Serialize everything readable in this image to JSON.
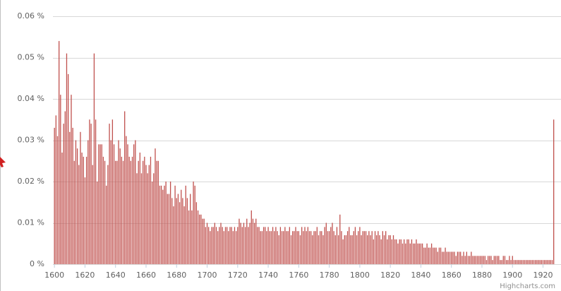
{
  "chart_data": {
    "type": "bar",
    "credits": "Highcharts.com",
    "color": "#c0504d",
    "grid": true,
    "ylim": [
      0,
      0.06
    ],
    "yticks": [
      {
        "value": 0,
        "label": "0 %"
      },
      {
        "value": 0.01,
        "label": "0.01 %"
      },
      {
        "value": 0.02,
        "label": "0.02 %"
      },
      {
        "value": 0.03,
        "label": "0.03 %"
      },
      {
        "value": 0.04,
        "label": "0.04 %"
      },
      {
        "value": 0.05,
        "label": "0.05 %"
      },
      {
        "value": 0.06,
        "label": "0.06 %"
      }
    ],
    "xlim": [
      1599,
      1929
    ],
    "xticks": [
      1600,
      1620,
      1640,
      1660,
      1680,
      1700,
      1720,
      1740,
      1760,
      1780,
      1800,
      1820,
      1840,
      1860,
      1880,
      1900,
      1920
    ],
    "x": [
      1600,
      1601,
      1602,
      1603,
      1604,
      1605,
      1606,
      1607,
      1608,
      1609,
      1610,
      1611,
      1612,
      1613,
      1614,
      1615,
      1616,
      1617,
      1618,
      1619,
      1620,
      1621,
      1622,
      1623,
      1624,
      1625,
      1626,
      1627,
      1628,
      1629,
      1630,
      1631,
      1632,
      1633,
      1634,
      1635,
      1636,
      1637,
      1638,
      1639,
      1640,
      1641,
      1642,
      1643,
      1644,
      1645,
      1646,
      1647,
      1648,
      1649,
      1650,
      1651,
      1652,
      1653,
      1654,
      1655,
      1656,
      1657,
      1658,
      1659,
      1660,
      1661,
      1662,
      1663,
      1664,
      1665,
      1666,
      1667,
      1668,
      1669,
      1670,
      1671,
      1672,
      1673,
      1674,
      1675,
      1676,
      1677,
      1678,
      1679,
      1680,
      1681,
      1682,
      1683,
      1684,
      1685,
      1686,
      1687,
      1688,
      1689,
      1690,
      1691,
      1692,
      1693,
      1694,
      1695,
      1696,
      1697,
      1698,
      1699,
      1700,
      1701,
      1702,
      1703,
      1704,
      1705,
      1706,
      1707,
      1708,
      1709,
      1710,
      1711,
      1712,
      1713,
      1714,
      1715,
      1716,
      1717,
      1718,
      1719,
      1720,
      1721,
      1722,
      1723,
      1724,
      1725,
      1726,
      1727,
      1728,
      1729,
      1730,
      1731,
      1732,
      1733,
      1734,
      1735,
      1736,
      1737,
      1738,
      1739,
      1740,
      1741,
      1742,
      1743,
      1744,
      1745,
      1746,
      1747,
      1748,
      1749,
      1750,
      1751,
      1752,
      1753,
      1754,
      1755,
      1756,
      1757,
      1758,
      1759,
      1760,
      1761,
      1762,
      1763,
      1764,
      1765,
      1766,
      1767,
      1768,
      1769,
      1770,
      1771,
      1772,
      1773,
      1774,
      1775,
      1776,
      1777,
      1778,
      1779,
      1780,
      1781,
      1782,
      1783,
      1784,
      1785,
      1786,
      1787,
      1788,
      1789,
      1790,
      1791,
      1792,
      1793,
      1794,
      1795,
      1796,
      1797,
      1798,
      1799,
      1800,
      1801,
      1802,
      1803,
      1804,
      1805,
      1806,
      1807,
      1808,
      1809,
      1810,
      1811,
      1812,
      1813,
      1814,
      1815,
      1816,
      1817,
      1818,
      1819,
      1820,
      1821,
      1822,
      1823,
      1824,
      1825,
      1826,
      1827,
      1828,
      1829,
      1830,
      1831,
      1832,
      1833,
      1834,
      1835,
      1836,
      1837,
      1838,
      1839,
      1840,
      1841,
      1842,
      1843,
      1844,
      1845,
      1846,
      1847,
      1848,
      1849,
      1850,
      1851,
      1852,
      1853,
      1854,
      1855,
      1856,
      1857,
      1858,
      1859,
      1860,
      1861,
      1862,
      1863,
      1864,
      1865,
      1866,
      1867,
      1868,
      1869,
      1870,
      1871,
      1872,
      1873,
      1874,
      1875,
      1876,
      1877,
      1878,
      1879,
      1880,
      1881,
      1882,
      1883,
      1884,
      1885,
      1886,
      1887,
      1888,
      1889,
      1890,
      1891,
      1892,
      1893,
      1894,
      1895,
      1896,
      1897,
      1898,
      1899,
      1900,
      1901,
      1902,
      1903,
      1904,
      1905,
      1906,
      1907,
      1908,
      1909,
      1910,
      1911,
      1912,
      1913,
      1914,
      1915,
      1916,
      1917,
      1918,
      1919,
      1920,
      1921,
      1922,
      1923,
      1924,
      1925,
      1926,
      1927
    ],
    "values": [
      0.033,
      0.036,
      0.031,
      0.054,
      0.041,
      0.027,
      0.034,
      0.037,
      0.051,
      0.046,
      0.032,
      0.041,
      0.033,
      0.025,
      0.03,
      0.028,
      0.024,
      0.032,
      0.027,
      0.026,
      0.021,
      0.026,
      0.03,
      0.035,
      0.034,
      0.024,
      0.051,
      0.035,
      0.02,
      0.029,
      0.029,
      0.029,
      0.026,
      0.025,
      0.019,
      0.024,
      0.034,
      0.03,
      0.035,
      0.029,
      0.025,
      0.025,
      0.03,
      0.028,
      0.026,
      0.025,
      0.037,
      0.031,
      0.029,
      0.026,
      0.025,
      0.026,
      0.029,
      0.03,
      0.022,
      0.025,
      0.027,
      0.022,
      0.025,
      0.026,
      0.024,
      0.022,
      0.024,
      0.026,
      0.02,
      0.022,
      0.028,
      0.025,
      0.025,
      0.019,
      0.019,
      0.018,
      0.019,
      0.02,
      0.017,
      0.017,
      0.02,
      0.016,
      0.014,
      0.019,
      0.016,
      0.017,
      0.015,
      0.018,
      0.016,
      0.014,
      0.019,
      0.016,
      0.013,
      0.017,
      0.013,
      0.02,
      0.019,
      0.015,
      0.013,
      0.012,
      0.012,
      0.011,
      0.011,
      0.009,
      0.01,
      0.009,
      0.008,
      0.009,
      0.009,
      0.01,
      0.009,
      0.008,
      0.009,
      0.01,
      0.009,
      0.008,
      0.009,
      0.009,
      0.008,
      0.009,
      0.009,
      0.008,
      0.009,
      0.008,
      0.009,
      0.011,
      0.01,
      0.009,
      0.01,
      0.009,
      0.011,
      0.009,
      0.01,
      0.013,
      0.011,
      0.01,
      0.011,
      0.009,
      0.009,
      0.008,
      0.008,
      0.009,
      0.009,
      0.008,
      0.009,
      0.008,
      0.008,
      0.009,
      0.008,
      0.009,
      0.008,
      0.007,
      0.009,
      0.008,
      0.008,
      0.009,
      0.008,
      0.008,
      0.009,
      0.007,
      0.008,
      0.008,
      0.009,
      0.008,
      0.008,
      0.007,
      0.009,
      0.008,
      0.009,
      0.008,
      0.009,
      0.008,
      0.008,
      0.007,
      0.008,
      0.008,
      0.009,
      0.007,
      0.008,
      0.008,
      0.007,
      0.009,
      0.01,
      0.008,
      0.008,
      0.009,
      0.01,
      0.008,
      0.007,
      0.009,
      0.007,
      0.012,
      0.008,
      0.006,
      0.007,
      0.007,
      0.008,
      0.009,
      0.007,
      0.007,
      0.008,
      0.009,
      0.007,
      0.008,
      0.009,
      0.007,
      0.008,
      0.008,
      0.008,
      0.007,
      0.008,
      0.007,
      0.008,
      0.006,
      0.008,
      0.007,
      0.008,
      0.007,
      0.006,
      0.008,
      0.007,
      0.008,
      0.006,
      0.007,
      0.007,
      0.006,
      0.007,
      0.006,
      0.006,
      0.005,
      0.006,
      0.006,
      0.005,
      0.006,
      0.005,
      0.006,
      0.006,
      0.005,
      0.006,
      0.005,
      0.005,
      0.006,
      0.005,
      0.005,
      0.005,
      0.005,
      0.004,
      0.004,
      0.005,
      0.004,
      0.004,
      0.005,
      0.004,
      0.004,
      0.004,
      0.003,
      0.004,
      0.004,
      0.003,
      0.003,
      0.004,
      0.003,
      0.003,
      0.003,
      0.003,
      0.003,
      0.003,
      0.002,
      0.003,
      0.003,
      0.003,
      0.002,
      0.003,
      0.002,
      0.003,
      0.002,
      0.002,
      0.003,
      0.002,
      0.002,
      0.002,
      0.002,
      0.002,
      0.002,
      0.002,
      0.002,
      0.002,
      0.001,
      0.002,
      0.002,
      0.002,
      0.001,
      0.002,
      0.002,
      0.002,
      0.002,
      0.001,
      0.001,
      0.002,
      0.002,
      0.001,
      0.001,
      0.002,
      0.001,
      0.002,
      0.001,
      0.001,
      0.001,
      0.001,
      0.001,
      0.001,
      0.001,
      0.001,
      0.001,
      0.001,
      0.001,
      0.001,
      0.001,
      0.001,
      0.001,
      0.001,
      0.001,
      0.001,
      0.001,
      0.001,
      0.001,
      0.001,
      0.001,
      0.001,
      0.001,
      0.001,
      0.035
    ]
  }
}
